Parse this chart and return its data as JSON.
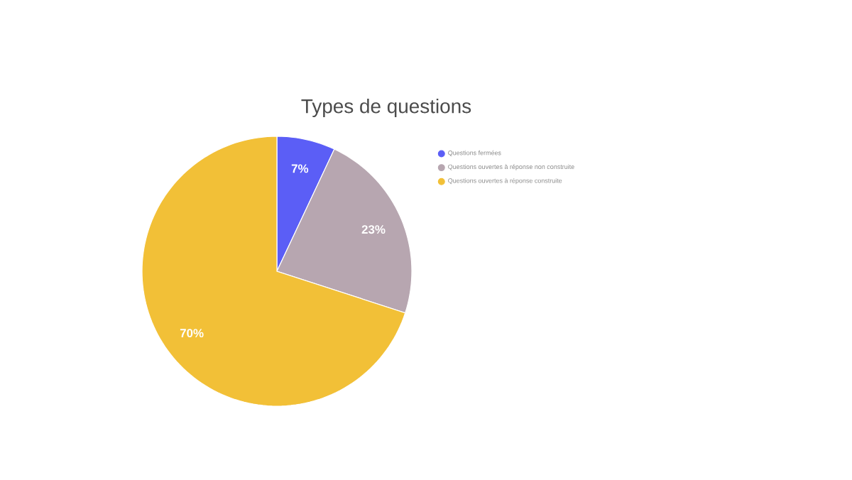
{
  "chart_data": {
    "type": "pie",
    "title": "Types de questions",
    "categories": [
      "Questions fermées",
      "Questions ouvertes à réponse non construite",
      "Questions ouvertes à réponse construite"
    ],
    "values": [
      7,
      23,
      70
    ],
    "colors": [
      "#5b5ef6",
      "#b7a6b0",
      "#f2c037"
    ],
    "value_labels": [
      "7%",
      "23%",
      "70%"
    ],
    "legend": "right"
  }
}
